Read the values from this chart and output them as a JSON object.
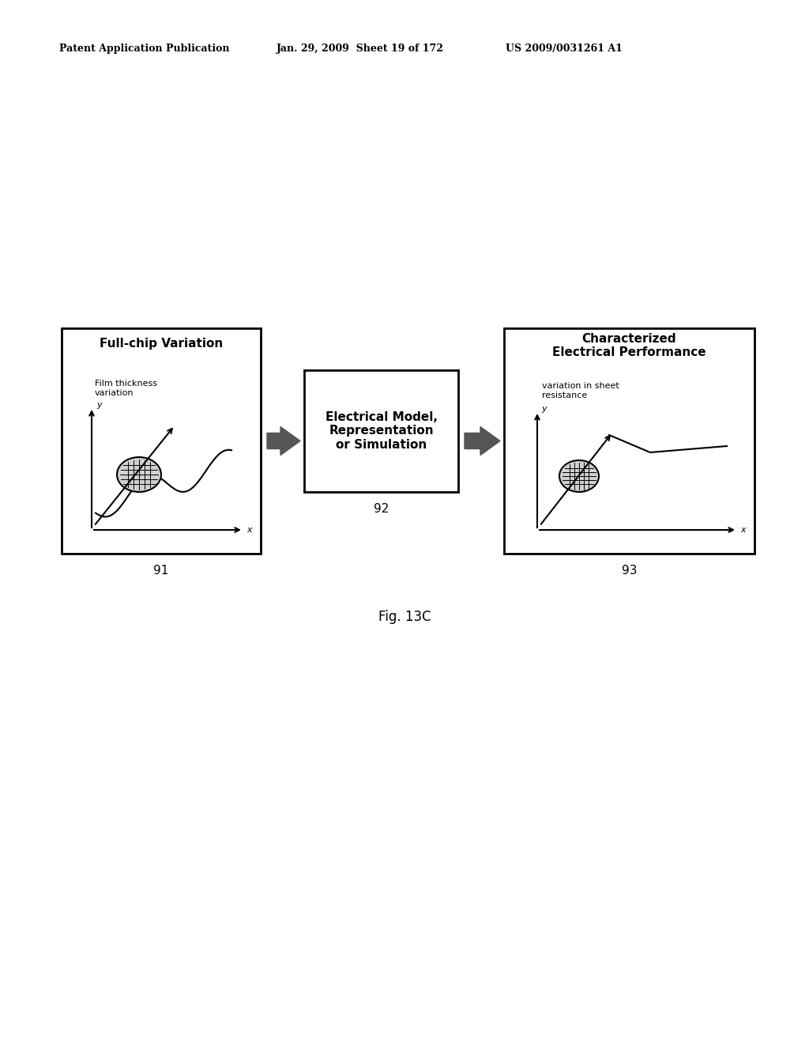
{
  "bg_color": "#ffffff",
  "header_left": "Patent Application Publication",
  "header_mid": "Jan. 29, 2009  Sheet 19 of 172",
  "header_right": "US 2009/0031261 A1",
  "fig_caption": "Fig. 13C",
  "box1_title": "Full-chip Variation",
  "box1_ylabel": "Film thickness\nvariation",
  "box1_label": "91",
  "box2_title": "Electrical Model,\nRepresentation\nor Simulation",
  "box2_label": "92",
  "box3_title": "Characterized\nElectrical Performance",
  "box3_ylabel": "variation in sheet\nresistance",
  "box3_label": "93",
  "header_fontsize": 9,
  "title_fontsize": 11,
  "label_fontsize": 11,
  "small_fontsize": 8,
  "axis_label_fontsize": 8,
  "caption_fontsize": 12
}
